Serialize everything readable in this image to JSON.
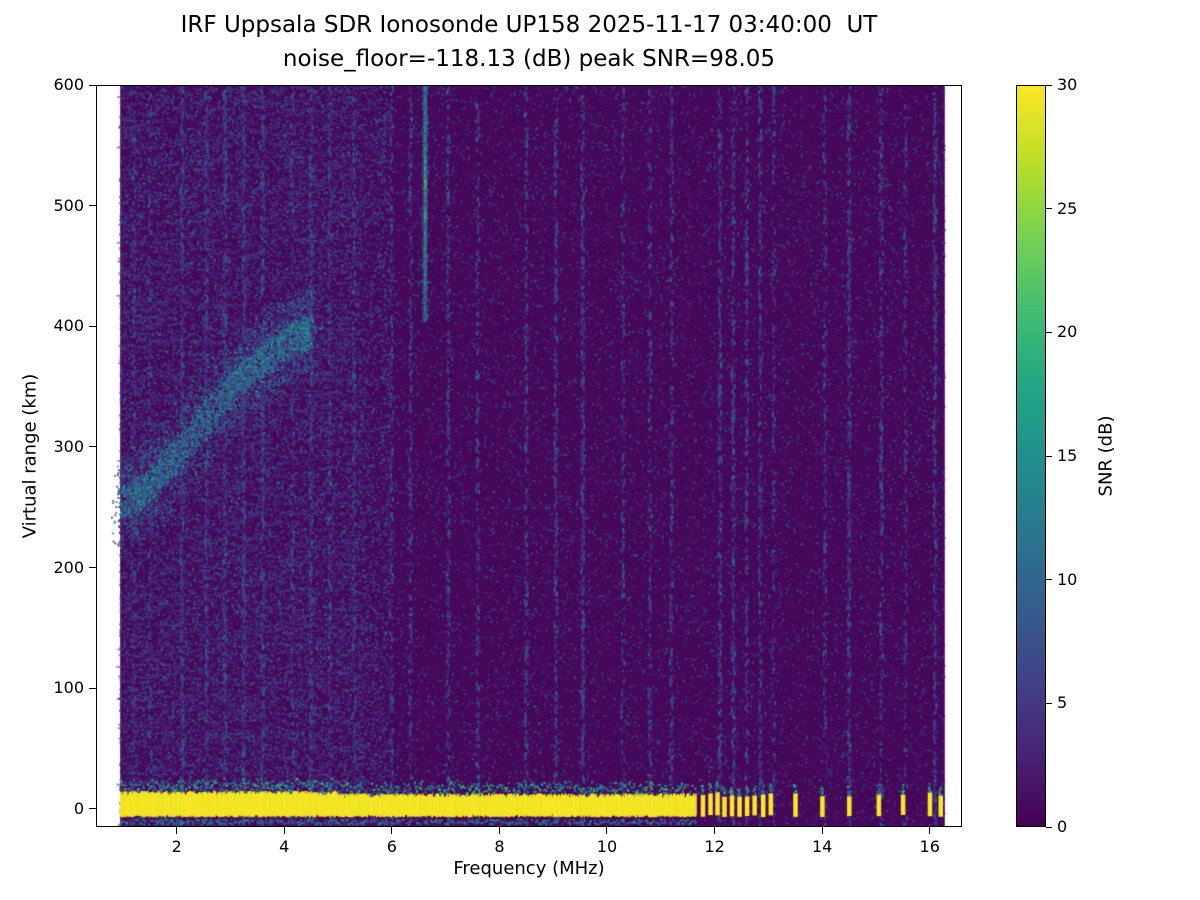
{
  "chart_data": {
    "type": "heatmap",
    "title": "IRF Uppsala SDR Ionosonde UP158 2025-11-17 03:40:00  UT",
    "subtitle": "noise_floor=-118.13 (dB) peak SNR=98.05",
    "station": "UP158",
    "timestamp_ut": "2025-11-17 03:40:00",
    "noise_floor_db": -118.13,
    "peak_snr_db": 98.05,
    "xlabel": "Frequency (MHz)",
    "ylabel": "Virtual range (km)",
    "colorbar_label": "SNR (dB)",
    "xlim": [
      0.5,
      16.6
    ],
    "ylim": [
      -15,
      600
    ],
    "x_ticks": [
      2,
      4,
      6,
      8,
      10,
      12,
      14,
      16
    ],
    "y_ticks": [
      0,
      100,
      200,
      300,
      400,
      500,
      600
    ],
    "grid": false,
    "colorbar": {
      "min": 0,
      "max": 30,
      "ticks": [
        0,
        5,
        10,
        15,
        20,
        25,
        30
      ],
      "position": "right"
    },
    "colormap": {
      "name": "viridis",
      "anchors": [
        [
          0.0,
          "#440154"
        ],
        [
          0.1,
          "#482475"
        ],
        [
          0.2,
          "#404387"
        ],
        [
          0.3,
          "#345e8d"
        ],
        [
          0.4,
          "#29788e"
        ],
        [
          0.5,
          "#20908c"
        ],
        [
          0.6,
          "#22a784"
        ],
        [
          0.7,
          "#44be70"
        ],
        [
          0.8,
          "#7ad151"
        ],
        [
          0.9,
          "#bdde26"
        ],
        [
          1.0,
          "#fde725"
        ]
      ]
    },
    "data_extent": {
      "f_min": 0.95,
      "f_max": 16.28,
      "r_min": -15,
      "r_max": 600
    },
    "features": {
      "ground_return_band": {
        "f_start_mhz": 0.95,
        "f_end_mhz": 11.65,
        "range_km": [
          -5,
          12
        ],
        "snr_db": 30
      },
      "pulsed_ground_returns": {
        "frequencies_mhz": [
          11.78,
          11.92,
          12.05,
          12.18,
          12.32,
          12.46,
          12.6,
          12.74,
          12.9,
          13.04,
          13.5,
          14.0,
          14.5,
          15.05,
          15.5,
          16.0,
          16.2
        ],
        "range_km": [
          -5,
          12
        ],
        "snr_db": 30
      },
      "ionospheric_echo_trace": {
        "points": [
          [
            1.0,
            252
          ],
          [
            1.3,
            262
          ],
          [
            1.6,
            273
          ],
          [
            2.0,
            292
          ],
          [
            2.4,
            315
          ],
          [
            2.8,
            338
          ],
          [
            3.1,
            352
          ],
          [
            3.4,
            365
          ],
          [
            3.7,
            376
          ],
          [
            4.0,
            384
          ],
          [
            4.3,
            392
          ],
          [
            4.5,
            398
          ]
        ],
        "snr_db_range": [
          4,
          18
        ]
      },
      "interference_streak": {
        "f_mhz": 6.62,
        "range_km": [
          405,
          600
        ],
        "peak_range_km": 515,
        "snr_db_range": [
          10,
          22
        ]
      },
      "rfi_columns_mhz": [
        1.2,
        1.5,
        2.1,
        2.55,
        2.9,
        3.25,
        3.6,
        4.15,
        4.5,
        4.85,
        5.3,
        6.0,
        6.35,
        7.05,
        7.6,
        8.5,
        9.05,
        9.55,
        10.3,
        10.8,
        11.2,
        12.1,
        12.35,
        12.6,
        12.85,
        13.1,
        14.05,
        14.5,
        15.1,
        15.55,
        16.1
      ],
      "background_speckle_snr_db": [
        1,
        10
      ]
    }
  }
}
